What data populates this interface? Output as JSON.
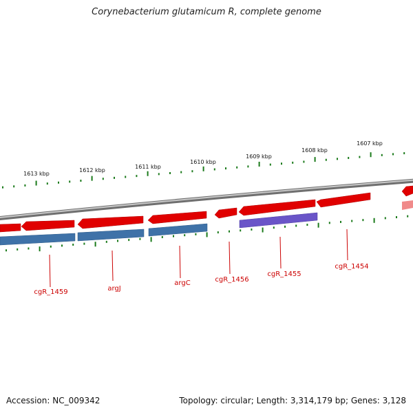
{
  "title": "Corynebacterium glutamicum R, complete genome",
  "footer": {
    "accession": "Accession: NC_009342",
    "summary": "Topology: circular; Length: 3,314,179 bp; Genes: 3,128"
  },
  "ruler": {
    "unit": "kbp",
    "ticks": [
      "1613 kbp",
      "1612 kbp",
      "1611 kbp",
      "1610 kbp",
      "1609 kbp",
      "1608 kbp",
      "1607 kbp"
    ]
  },
  "genes": [
    "cgR_1459",
    "argJ",
    "argC",
    "cgR_1456",
    "cgR_1455",
    "cgR_1454"
  ],
  "colors": {
    "backbone": "#8c8c8c",
    "gene_red": "#e00000",
    "gene_blue": "#3f72a8",
    "gene_purple": "#6a55c8",
    "tick_green": "#1a7a1a",
    "label_red": "#cc0000"
  }
}
